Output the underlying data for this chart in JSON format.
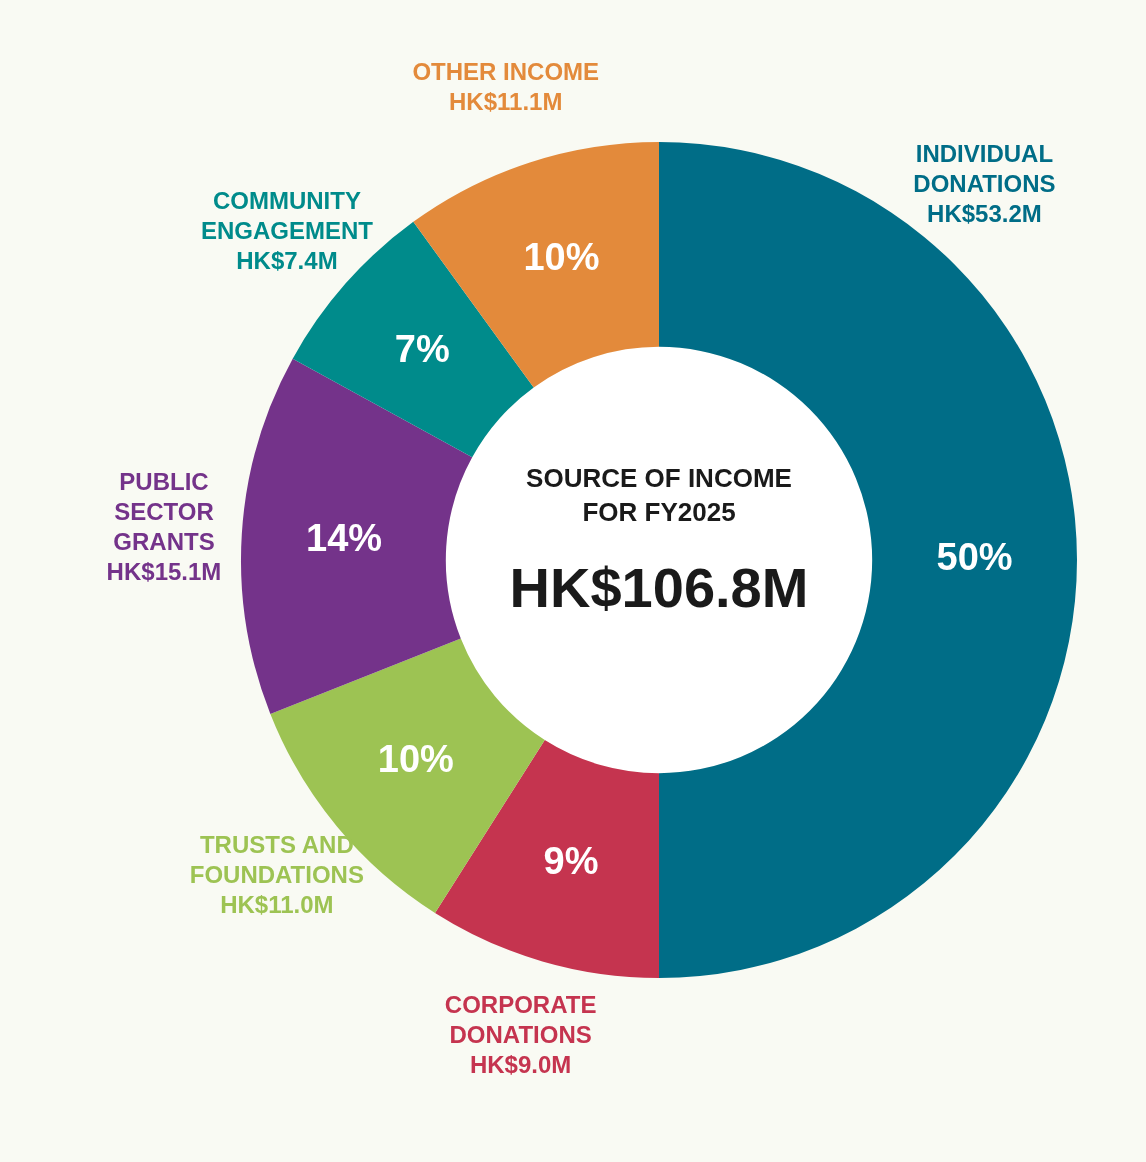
{
  "chart_data": {
    "type": "donut",
    "title": "SOURCE OF INCOME FOR FY2025",
    "subtitle": "HK$106.8M",
    "categories": [
      "INDIVIDUAL DONATIONS",
      "CORPORATE DONATIONS",
      "TRUSTS AND FOUNDATIONS",
      "PUBLIC SECTOR GRANTS",
      "COMMUNITY ENGAGEMENT",
      "OTHER INCOME"
    ],
    "values": [
      50,
      9,
      10,
      14,
      7,
      10
    ],
    "colors": [
      "#006d87",
      "#c5344f",
      "#9dc353",
      "#74338a",
      "#008b8b",
      "#e38a3b"
    ],
    "value_labels": [
      "50%",
      "9%",
      "10%",
      "14%",
      "7%",
      "10%"
    ],
    "annotations": [
      "HK$53.2M",
      "HK$9.0M",
      "HK$11.0M",
      "HK$15.1M",
      "HK$7.4M",
      "HK$11.1M"
    ],
    "legend": false
  }
}
